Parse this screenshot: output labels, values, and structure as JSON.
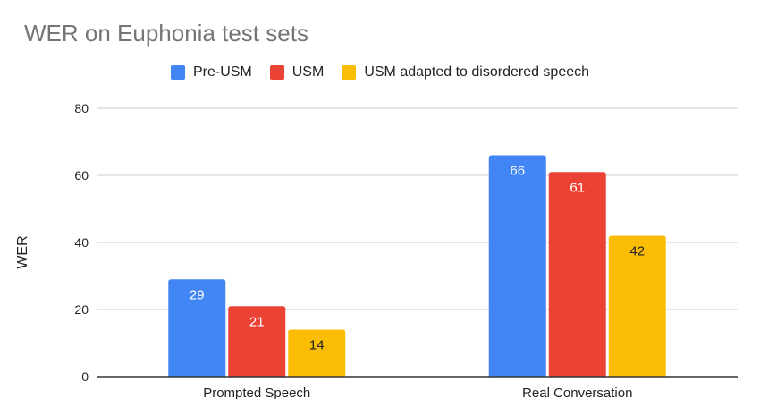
{
  "chart_data": {
    "type": "bar",
    "title": "WER on Euphonia test sets",
    "xlabel": "",
    "ylabel": "WER",
    "ylim": [
      0,
      80
    ],
    "yticks": [
      0,
      20,
      40,
      60,
      80
    ],
    "grid": true,
    "legend_position": "top-center",
    "categories": [
      "Prompted Speech",
      "Real Conversation"
    ],
    "series": [
      {
        "name": "Pre-USM",
        "color": "#4285F4",
        "label_color": "#ffffff",
        "values": [
          29,
          66
        ]
      },
      {
        "name": "USM",
        "color": "#EA4335",
        "label_color": "#ffffff",
        "values": [
          21,
          61
        ]
      },
      {
        "name": "USM adapted to disordered speech",
        "color": "#FBBC04",
        "label_color": "#222222",
        "values": [
          14,
          42
        ]
      }
    ]
  }
}
